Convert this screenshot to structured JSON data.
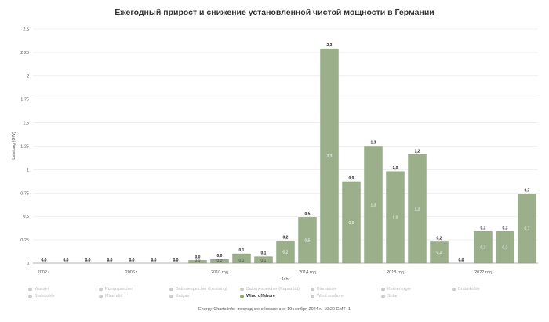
{
  "chart_data": {
    "type": "bar",
    "title": "Ежегодный прирост и снижение установленной чистой мощности в Германии",
    "xlabel": "Jahr",
    "ylabel": "Leistung (GW)",
    "ylim": [
      0,
      2.5
    ],
    "yticks": [
      "0",
      "0,25",
      "0,5",
      "0,75",
      "1",
      "1,25",
      "1,5",
      "1,75",
      "2",
      "2,25",
      "2,5"
    ],
    "ytick_values": [
      0,
      0.25,
      0.5,
      0.75,
      1,
      1.25,
      1.5,
      1.75,
      2,
      2.25,
      2.5
    ],
    "categories": [
      "2002",
      "2003",
      "2004",
      "2005",
      "2006",
      "2007",
      "2008",
      "2009",
      "2010",
      "2011",
      "2012",
      "2013",
      "2014",
      "2015",
      "2016",
      "2017",
      "2018",
      "2019",
      "2020",
      "2021",
      "2022",
      "2023",
      "2024"
    ],
    "xtick_labels": [
      {
        "index": 0,
        "label": "2002 г."
      },
      {
        "index": 4,
        "label": "2006 г."
      },
      {
        "index": 8,
        "label": "2010 год"
      },
      {
        "index": 12,
        "label": "2014 год"
      },
      {
        "index": 16,
        "label": "2018 год"
      },
      {
        "index": 20,
        "label": "2022 год"
      }
    ],
    "series": [
      {
        "name": "Wind offshore",
        "color": "#9bb08a",
        "values": [
          0,
          0,
          0,
          0,
          0,
          0,
          0,
          0.03,
          0.04,
          0.1,
          0.07,
          0.24,
          0.49,
          2.29,
          0.87,
          1.25,
          0.98,
          1.16,
          0.23,
          0,
          0.34,
          0.34,
          0.74
        ],
        "labels": [
          "0,0",
          "0,0",
          "0,0",
          "0,0",
          "0,0",
          "0,0",
          "0,0",
          "0,0",
          "0,0",
          "0,1",
          "0,1",
          "0,2",
          "0,5",
          "2,3",
          "0,9",
          "1,3",
          "1,0",
          "1,2",
          "0,2",
          "0,0",
          "0,3",
          "0,3",
          "0,7"
        ],
        "top_labels": [
          "0,0",
          "0,0",
          "0,0",
          "0,0",
          "0,0",
          "0,0",
          "0,0",
          "0,0",
          "0,0",
          "0,1",
          "0,1",
          "0,2",
          "0,5",
          "2,3",
          "0,9",
          "1,3",
          "1,0",
          "1,2",
          "0,2",
          "0,0",
          "0,3",
          "0,3",
          "0,7"
        ]
      }
    ]
  },
  "legend": {
    "items": [
      {
        "label": "Wasser",
        "active": false
      },
      {
        "label": "Pumpspeicher",
        "active": false
      },
      {
        "label": "Batteriespeicher (Leistung)",
        "active": false
      },
      {
        "label": "Batteriespeicher (Kapazität)",
        "active": false
      },
      {
        "label": "Biomasse",
        "active": false
      },
      {
        "label": "Kernenergie",
        "active": false
      },
      {
        "label": "Braunkohle",
        "active": false
      },
      {
        "label": "Steinkohle",
        "active": false
      },
      {
        "label": "Mineralöl",
        "active": false
      },
      {
        "label": "Erdgas",
        "active": false
      },
      {
        "label": "Wind offshore",
        "active": true
      },
      {
        "label": "Wind onshore",
        "active": false
      },
      {
        "label": "Solar",
        "active": false
      }
    ]
  },
  "footer": "Energy-Charts.info - последнее обновление: 19 ноября 2024 г., 10:20 GMT+1",
  "colors": {
    "bar": "#9bb08a",
    "bar_stroke": "#7f9770",
    "grid": "#e6e6e6",
    "active_dot": "#8fa86e"
  }
}
